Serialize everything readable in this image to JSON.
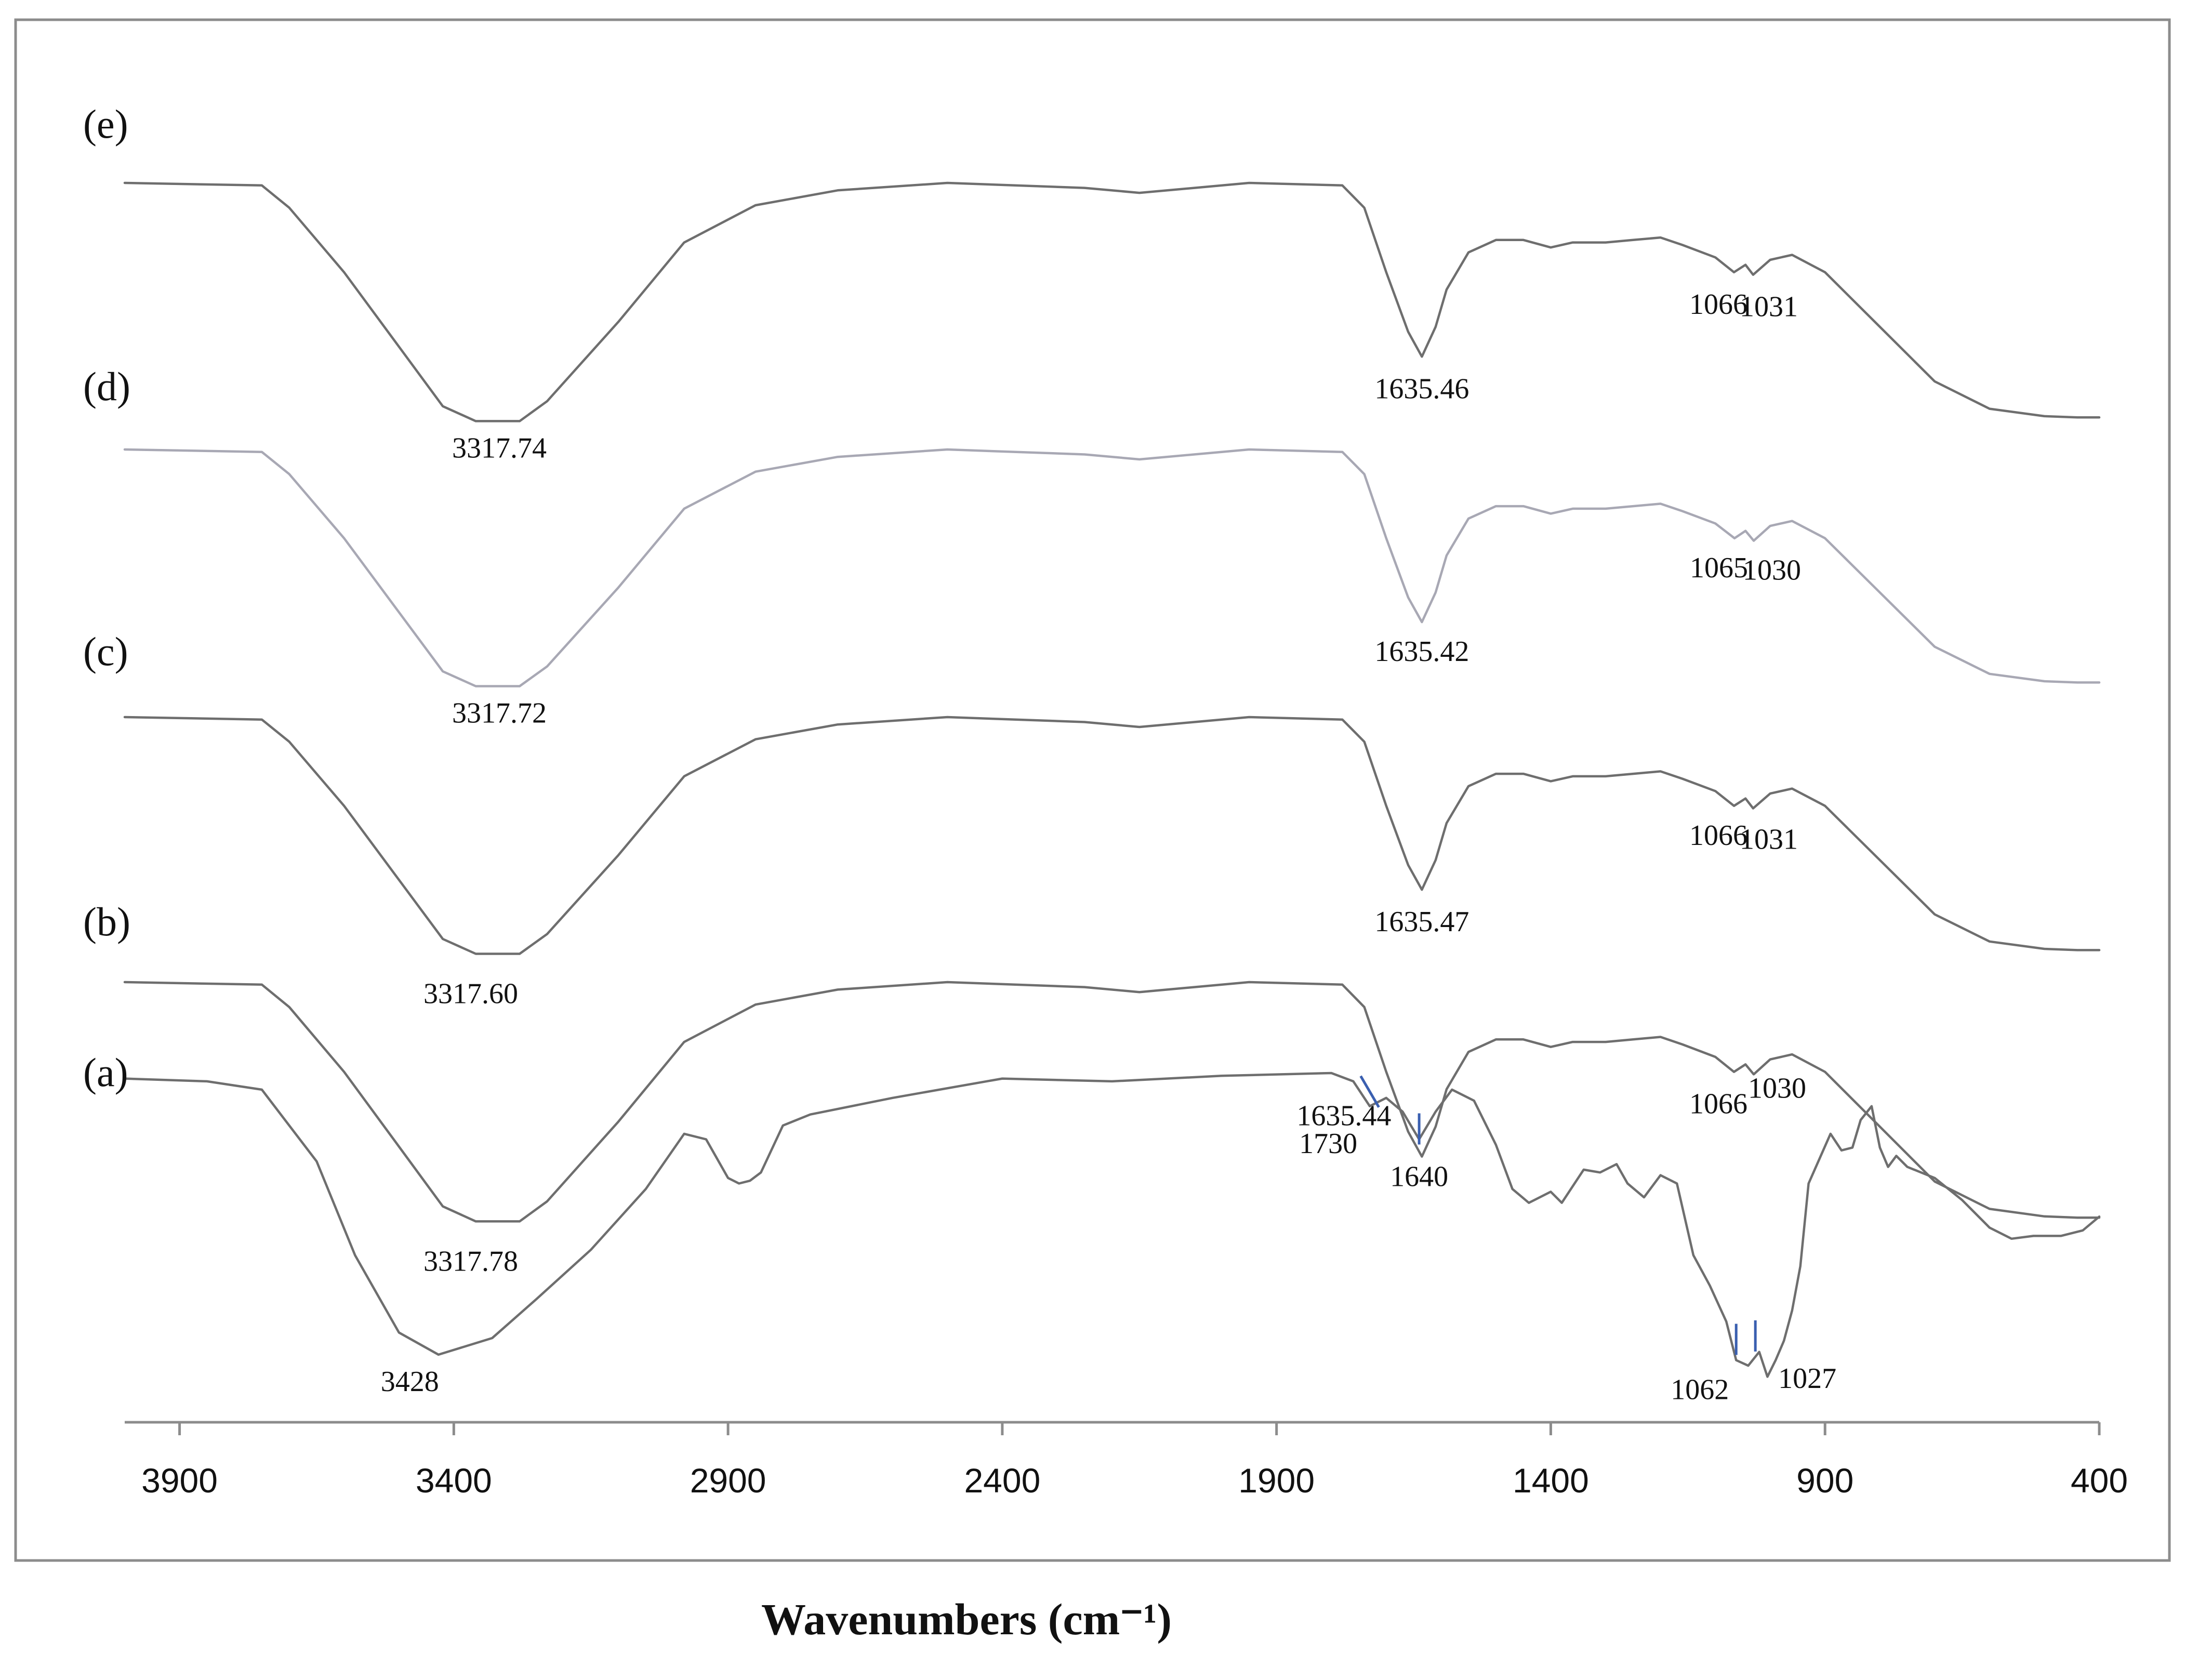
{
  "chart_data": {
    "type": "line",
    "xlabel": "Wavenumbers (cm⁻¹)",
    "xlim": [
      4000,
      400
    ],
    "x_reversed": true,
    "x_ticks": [
      3900,
      3400,
      2900,
      2400,
      1900,
      1400,
      900,
      400
    ],
    "y_axis_shown": false,
    "grid": false,
    "colors": {
      "spectrum_dark": "#6e6e6e",
      "spectrum_light": "#a8a8b4",
      "marker": "#3a5fb0",
      "frame": "#8c8c8c"
    },
    "series": [
      {
        "name": "(e)",
        "offset": 4,
        "points": [
          [
            4000,
            0.98
          ],
          [
            3750,
            0.97
          ],
          [
            3700,
            0.88
          ],
          [
            3600,
            0.62
          ],
          [
            3500,
            0.32
          ],
          [
            3420,
            0.08
          ],
          [
            3360,
            0.02
          ],
          [
            3280,
            0.02
          ],
          [
            3230,
            0.1
          ],
          [
            3100,
            0.42
          ],
          [
            2980,
            0.74
          ],
          [
            2850,
            0.89
          ],
          [
            2700,
            0.95
          ],
          [
            2500,
            0.98
          ],
          [
            2250,
            0.96
          ],
          [
            2150,
            0.94
          ],
          [
            2050,
            0.96
          ],
          [
            1950,
            0.98
          ],
          [
            1780,
            0.97
          ],
          [
            1740,
            0.88
          ],
          [
            1700,
            0.62
          ],
          [
            1680,
            0.5
          ],
          [
            1660,
            0.38
          ],
          [
            1635,
            0.28
          ],
          [
            1610,
            0.4
          ],
          [
            1590,
            0.55
          ],
          [
            1550,
            0.7
          ],
          [
            1500,
            0.75
          ],
          [
            1450,
            0.75
          ],
          [
            1400,
            0.72
          ],
          [
            1360,
            0.74
          ],
          [
            1300,
            0.74
          ],
          [
            1250,
            0.75
          ],
          [
            1200,
            0.76
          ],
          [
            1160,
            0.73
          ],
          [
            1100,
            0.68
          ],
          [
            1066,
            0.62
          ],
          [
            1045,
            0.65
          ],
          [
            1031,
            0.61
          ],
          [
            1000,
            0.67
          ],
          [
            960,
            0.69
          ],
          [
            900,
            0.62
          ],
          [
            800,
            0.4
          ],
          [
            700,
            0.18
          ],
          [
            600,
            0.07
          ],
          [
            500,
            0.04
          ],
          [
            440,
            0.035
          ],
          [
            400,
            0.035
          ]
        ]
      },
      {
        "name": "(d)",
        "offset": 3,
        "points": [
          [
            4000,
            0.98
          ],
          [
            3750,
            0.97
          ],
          [
            3700,
            0.88
          ],
          [
            3600,
            0.62
          ],
          [
            3500,
            0.32
          ],
          [
            3420,
            0.08
          ],
          [
            3360,
            0.02
          ],
          [
            3280,
            0.02
          ],
          [
            3230,
            0.1
          ],
          [
            3100,
            0.42
          ],
          [
            2980,
            0.74
          ],
          [
            2850,
            0.89
          ],
          [
            2700,
            0.95
          ],
          [
            2500,
            0.98
          ],
          [
            2250,
            0.96
          ],
          [
            2150,
            0.94
          ],
          [
            2050,
            0.96
          ],
          [
            1950,
            0.98
          ],
          [
            1780,
            0.97
          ],
          [
            1740,
            0.88
          ],
          [
            1700,
            0.62
          ],
          [
            1680,
            0.5
          ],
          [
            1660,
            0.38
          ],
          [
            1635,
            0.28
          ],
          [
            1610,
            0.4
          ],
          [
            1590,
            0.55
          ],
          [
            1550,
            0.7
          ],
          [
            1500,
            0.75
          ],
          [
            1450,
            0.75
          ],
          [
            1400,
            0.72
          ],
          [
            1360,
            0.74
          ],
          [
            1300,
            0.74
          ],
          [
            1250,
            0.75
          ],
          [
            1200,
            0.76
          ],
          [
            1160,
            0.73
          ],
          [
            1100,
            0.68
          ],
          [
            1065,
            0.62
          ],
          [
            1045,
            0.65
          ],
          [
            1030,
            0.61
          ],
          [
            1000,
            0.67
          ],
          [
            960,
            0.69
          ],
          [
            900,
            0.62
          ],
          [
            800,
            0.4
          ],
          [
            700,
            0.18
          ],
          [
            600,
            0.07
          ],
          [
            500,
            0.04
          ],
          [
            440,
            0.035
          ],
          [
            400,
            0.035
          ]
        ]
      },
      {
        "name": "(c)",
        "offset": 2,
        "points": [
          [
            4000,
            0.98
          ],
          [
            3750,
            0.97
          ],
          [
            3700,
            0.88
          ],
          [
            3600,
            0.62
          ],
          [
            3500,
            0.32
          ],
          [
            3420,
            0.08
          ],
          [
            3360,
            0.02
          ],
          [
            3280,
            0.02
          ],
          [
            3230,
            0.1
          ],
          [
            3100,
            0.42
          ],
          [
            2980,
            0.74
          ],
          [
            2850,
            0.89
          ],
          [
            2700,
            0.95
          ],
          [
            2500,
            0.98
          ],
          [
            2250,
            0.96
          ],
          [
            2150,
            0.94
          ],
          [
            2050,
            0.96
          ],
          [
            1950,
            0.98
          ],
          [
            1780,
            0.97
          ],
          [
            1740,
            0.88
          ],
          [
            1700,
            0.62
          ],
          [
            1680,
            0.5
          ],
          [
            1660,
            0.38
          ],
          [
            1635,
            0.28
          ],
          [
            1610,
            0.4
          ],
          [
            1590,
            0.55
          ],
          [
            1550,
            0.7
          ],
          [
            1500,
            0.75
          ],
          [
            1450,
            0.75
          ],
          [
            1400,
            0.72
          ],
          [
            1360,
            0.74
          ],
          [
            1300,
            0.74
          ],
          [
            1250,
            0.75
          ],
          [
            1200,
            0.76
          ],
          [
            1160,
            0.73
          ],
          [
            1100,
            0.68
          ],
          [
            1066,
            0.62
          ],
          [
            1045,
            0.65
          ],
          [
            1031,
            0.61
          ],
          [
            1000,
            0.67
          ],
          [
            960,
            0.69
          ],
          [
            900,
            0.62
          ],
          [
            800,
            0.4
          ],
          [
            700,
            0.18
          ],
          [
            600,
            0.07
          ],
          [
            500,
            0.04
          ],
          [
            440,
            0.035
          ],
          [
            400,
            0.035
          ]
        ]
      },
      {
        "name": "(b)",
        "offset": 1,
        "points": [
          [
            4000,
            0.98
          ],
          [
            3750,
            0.97
          ],
          [
            3700,
            0.88
          ],
          [
            3600,
            0.62
          ],
          [
            3500,
            0.32
          ],
          [
            3420,
            0.08
          ],
          [
            3360,
            0.02
          ],
          [
            3280,
            0.02
          ],
          [
            3230,
            0.1
          ],
          [
            3100,
            0.42
          ],
          [
            2980,
            0.74
          ],
          [
            2850,
            0.89
          ],
          [
            2700,
            0.95
          ],
          [
            2500,
            0.98
          ],
          [
            2250,
            0.96
          ],
          [
            2150,
            0.94
          ],
          [
            2050,
            0.96
          ],
          [
            1950,
            0.98
          ],
          [
            1780,
            0.97
          ],
          [
            1740,
            0.88
          ],
          [
            1700,
            0.62
          ],
          [
            1680,
            0.5
          ],
          [
            1660,
            0.38
          ],
          [
            1635,
            0.28
          ],
          [
            1610,
            0.4
          ],
          [
            1590,
            0.55
          ],
          [
            1550,
            0.7
          ],
          [
            1500,
            0.75
          ],
          [
            1450,
            0.75
          ],
          [
            1400,
            0.72
          ],
          [
            1360,
            0.74
          ],
          [
            1300,
            0.74
          ],
          [
            1250,
            0.75
          ],
          [
            1200,
            0.76
          ],
          [
            1160,
            0.73
          ],
          [
            1100,
            0.68
          ],
          [
            1066,
            0.62
          ],
          [
            1045,
            0.65
          ],
          [
            1030,
            0.61
          ],
          [
            1000,
            0.67
          ],
          [
            960,
            0.69
          ],
          [
            900,
            0.62
          ],
          [
            800,
            0.4
          ],
          [
            700,
            0.18
          ],
          [
            600,
            0.07
          ],
          [
            500,
            0.04
          ],
          [
            440,
            0.035
          ],
          [
            400,
            0.035
          ]
        ]
      },
      {
        "name": "(a)",
        "offset": 0,
        "points": [
          [
            4000,
            1.2
          ],
          [
            3850,
            1.19
          ],
          [
            3750,
            1.16
          ],
          [
            3650,
            0.9
          ],
          [
            3580,
            0.56
          ],
          [
            3500,
            0.28
          ],
          [
            3428,
            0.2
          ],
          [
            3330,
            0.26
          ],
          [
            3250,
            0.4
          ],
          [
            3150,
            0.58
          ],
          [
            3050,
            0.8
          ],
          [
            2980,
            1.0
          ],
          [
            2940,
            0.98
          ],
          [
            2900,
            0.84
          ],
          [
            2880,
            0.82
          ],
          [
            2860,
            0.83
          ],
          [
            2840,
            0.86
          ],
          [
            2800,
            1.03
          ],
          [
            2750,
            1.07
          ],
          [
            2600,
            1.13
          ],
          [
            2400,
            1.2
          ],
          [
            2200,
            1.19
          ],
          [
            2000,
            1.21
          ],
          [
            1800,
            1.22
          ],
          [
            1760,
            1.19
          ],
          [
            1730,
            1.1
          ],
          [
            1700,
            1.13
          ],
          [
            1670,
            1.08
          ],
          [
            1640,
            0.98
          ],
          [
            1610,
            1.08
          ],
          [
            1580,
            1.16
          ],
          [
            1540,
            1.12
          ],
          [
            1500,
            0.96
          ],
          [
            1470,
            0.8
          ],
          [
            1440,
            0.75
          ],
          [
            1400,
            0.79
          ],
          [
            1380,
            0.75
          ],
          [
            1340,
            0.87
          ],
          [
            1310,
            0.86
          ],
          [
            1280,
            0.89
          ],
          [
            1260,
            0.82
          ],
          [
            1230,
            0.77
          ],
          [
            1200,
            0.85
          ],
          [
            1170,
            0.82
          ],
          [
            1140,
            0.56
          ],
          [
            1110,
            0.45
          ],
          [
            1080,
            0.32
          ],
          [
            1062,
            0.18
          ],
          [
            1040,
            0.16
          ],
          [
            1020,
            0.21
          ],
          [
            1005,
            0.12
          ],
          [
            990,
            0.18
          ],
          [
            975,
            0.25
          ],
          [
            960,
            0.36
          ],
          [
            945,
            0.52
          ],
          [
            930,
            0.82
          ],
          [
            910,
            0.91
          ],
          [
            890,
            1.0
          ],
          [
            870,
            0.94
          ],
          [
            850,
            0.95
          ],
          [
            835,
            1.05
          ],
          [
            815,
            1.1
          ],
          [
            800,
            0.95
          ],
          [
            785,
            0.88
          ],
          [
            770,
            0.92
          ],
          [
            750,
            0.88
          ],
          [
            700,
            0.84
          ],
          [
            650,
            0.76
          ],
          [
            600,
            0.66
          ],
          [
            560,
            0.62
          ],
          [
            520,
            0.63
          ],
          [
            470,
            0.63
          ],
          [
            430,
            0.65
          ],
          [
            400,
            0.7
          ]
        ]
      }
    ],
    "annotations": [
      {
        "series": "(e)",
        "text": "3317.74",
        "x": 3317
      },
      {
        "series": "(e)",
        "text": "1635.46",
        "x": 1635
      },
      {
        "series": "(e)",
        "text": "1066",
        "x": 1066
      },
      {
        "series": "(e)",
        "text": "1031",
        "x": 1031
      },
      {
        "series": "(d)",
        "text": "3317.72",
        "x": 3317
      },
      {
        "series": "(d)",
        "text": "1635.42",
        "x": 1635
      },
      {
        "series": "(d)",
        "text": "1065",
        "x": 1065
      },
      {
        "series": "(d)",
        "text": "1030",
        "x": 1030
      },
      {
        "series": "(c)",
        "text": "3317.60",
        "x": 3317
      },
      {
        "series": "(c)",
        "text": "1635.47",
        "x": 1635
      },
      {
        "series": "(c)",
        "text": "1066",
        "x": 1066
      },
      {
        "series": "(c)",
        "text": "1031",
        "x": 1031
      },
      {
        "series": "(b)",
        "text": "3317.78",
        "x": 3317
      },
      {
        "series": "(b)",
        "text": "1635.44",
        "x": 1635
      },
      {
        "series": "(b)",
        "text": "1066",
        "x": 1066
      },
      {
        "series": "(b)",
        "text": "1030",
        "x": 1030
      },
      {
        "series": "(a)",
        "text": "3428",
        "x": 3428
      },
      {
        "series": "(a)",
        "text": "1730",
        "x": 1730
      },
      {
        "series": "(a)",
        "text": "1640",
        "x": 1640
      },
      {
        "series": "(a)",
        "text": "1062",
        "x": 1062
      },
      {
        "series": "(a)",
        "text": "1027",
        "x": 1027
      }
    ]
  }
}
